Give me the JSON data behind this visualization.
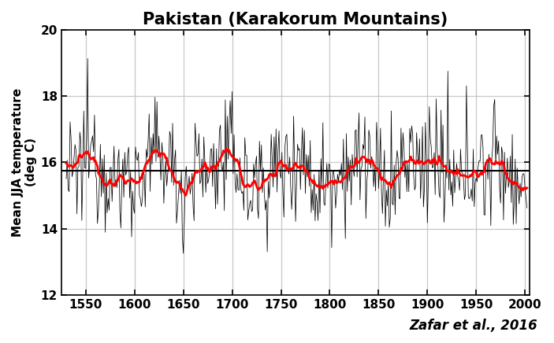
{
  "title": "Pakistan (Karakorum Mountains)",
  "ylabel": "Mean JJA temperature\n(deg C)",
  "xlabel": "",
  "attribution": "Zafar et al., 2016",
  "xlim": [
    1525,
    2005
  ],
  "ylim": [
    12,
    20
  ],
  "xticks": [
    1550,
    1600,
    1650,
    1700,
    1750,
    1800,
    1850,
    1900,
    1950,
    2000
  ],
  "yticks": [
    12,
    14,
    16,
    18,
    20
  ],
  "mean_line": 15.75,
  "background_color": "#ffffff",
  "title_fontsize": 15,
  "tick_fontsize": 11,
  "ylabel_fontsize": 11,
  "attribution_fontsize": 12,
  "smooth_window": 20,
  "noise_std": 0.85,
  "signal_amplitude": 0.38
}
